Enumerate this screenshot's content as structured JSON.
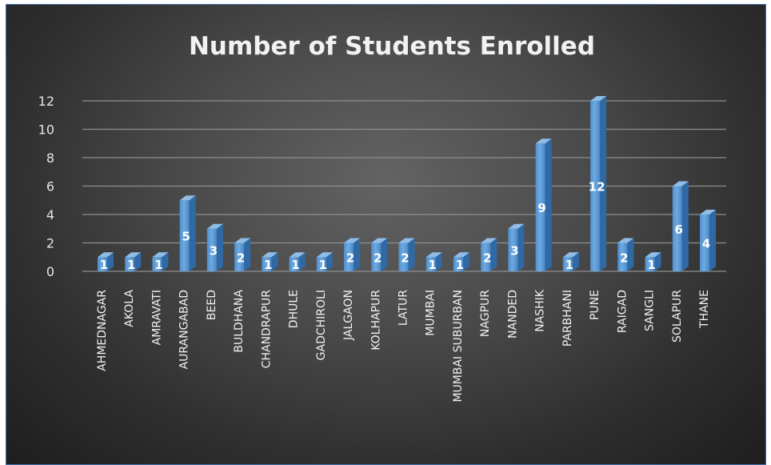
{
  "chart_data": {
    "type": "bar",
    "title": "Number of Students Enrolled",
    "categories": [
      "AHMEDNAGAR",
      "AKOLA",
      "AMRAVATI",
      "AURANGABAD",
      "BEED",
      "BULDHANA",
      "CHANDRAPUR",
      "DHULE",
      "GADCHIROLI",
      "JALGAON",
      "KOLHAPUR",
      "LATUR",
      "MUMBAI",
      "MUMBAI SUBURBAN",
      "NAGPUR",
      "NANDED",
      "NASHIK",
      "PARBHANI",
      "PUNE",
      "RAIGAD",
      "SANGLI",
      "SOLAPUR",
      "THANE"
    ],
    "values": [
      1,
      1,
      1,
      5,
      3,
      2,
      1,
      1,
      1,
      2,
      2,
      2,
      1,
      1,
      2,
      3,
      9,
      1,
      12,
      2,
      1,
      6,
      4
    ],
    "data_labels": [
      "1",
      "1",
      "1",
      "5",
      "3",
      "2",
      "1",
      "1",
      "1",
      "2",
      "2",
      "2",
      "1",
      "1",
      "2",
      "3",
      "9",
      "1",
      "12",
      "2",
      "1",
      "6",
      "4"
    ],
    "yticks": [
      "0",
      "2",
      "4",
      "6",
      "8",
      "10",
      "12"
    ],
    "ytick_values": [
      0,
      2,
      4,
      6,
      8,
      10,
      12
    ],
    "ylim": [
      0,
      12
    ],
    "xlabel": "",
    "ylabel": "",
    "grid": true,
    "style": "3d-column",
    "colors": {
      "bar_front": "#5b9bd5",
      "bar_side": "#2f6aa6",
      "bar_top": "#8fbde6",
      "grid": "#8e8e8e",
      "text": "#f0f0f0"
    }
  }
}
